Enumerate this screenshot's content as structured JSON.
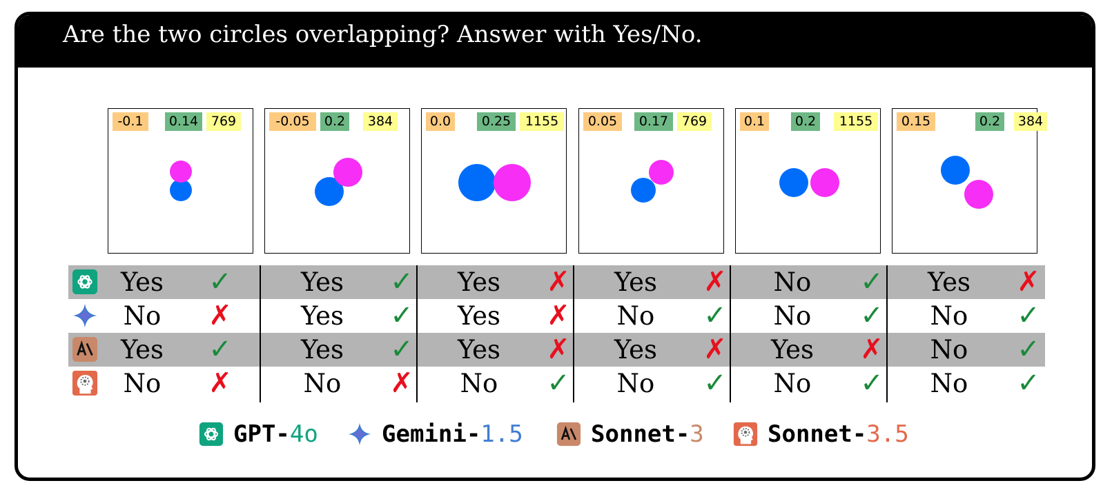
{
  "header": {
    "question": "Are the two circles overlapping? Answer with Yes/No."
  },
  "colors": {
    "blue_circle": "#006dfa",
    "magenta_circle": "#f62ef6",
    "label_orange": "#fdcb80",
    "label_green": "#6db884",
    "label_yellow": "#fdfd90",
    "check": "#1a8a3a",
    "cross": "#e8101e",
    "gpt": "#10a37f",
    "gemini": "#3f7dd1",
    "sonnet3": "#c9886a",
    "sonnet35": "#e2694a"
  },
  "panels": [
    {
      "labels": [
        "-0.1",
        "0.14",
        "769"
      ]
    },
    {
      "labels": [
        "-0.05",
        "0.2",
        "384"
      ]
    },
    {
      "labels": [
        "0.0",
        "0.25",
        "1155"
      ]
    },
    {
      "labels": [
        "0.05",
        "0.17",
        "769"
      ]
    },
    {
      "labels": [
        "0.1",
        "0.2",
        "1155"
      ]
    },
    {
      "labels": [
        "0.15",
        "0.2",
        "384"
      ]
    }
  ],
  "symbols": {
    "check": "✓",
    "cross": "✗"
  },
  "results": [
    {
      "model_icon": "gpt-icon",
      "cells": [
        {
          "answer": "Yes",
          "correct": true
        },
        {
          "answer": "Yes",
          "correct": true
        },
        {
          "answer": "Yes",
          "correct": false
        },
        {
          "answer": "Yes",
          "correct": false
        },
        {
          "answer": "No",
          "correct": true
        },
        {
          "answer": "Yes",
          "correct": false
        }
      ]
    },
    {
      "model_icon": "gemini-icon",
      "cells": [
        {
          "answer": "No",
          "correct": false
        },
        {
          "answer": "Yes",
          "correct": true
        },
        {
          "answer": "Yes",
          "correct": false
        },
        {
          "answer": "No",
          "correct": true
        },
        {
          "answer": "No",
          "correct": true
        },
        {
          "answer": "No",
          "correct": true
        }
      ]
    },
    {
      "model_icon": "sonnet3-icon",
      "cells": [
        {
          "answer": "Yes",
          "correct": true
        },
        {
          "answer": "Yes",
          "correct": true
        },
        {
          "answer": "Yes",
          "correct": false
        },
        {
          "answer": "Yes",
          "correct": false
        },
        {
          "answer": "Yes",
          "correct": false
        },
        {
          "answer": "No",
          "correct": true
        }
      ]
    },
    {
      "model_icon": "sonnet35-icon",
      "cells": [
        {
          "answer": "No",
          "correct": false
        },
        {
          "answer": "No",
          "correct": false
        },
        {
          "answer": "No",
          "correct": true
        },
        {
          "answer": "No",
          "correct": true
        },
        {
          "answer": "No",
          "correct": true
        },
        {
          "answer": "No",
          "correct": true
        }
      ]
    }
  ],
  "legend": [
    {
      "icon": "gpt-icon",
      "prefix": "GPT-",
      "suffix": "4o"
    },
    {
      "icon": "gemini-icon",
      "prefix": "Gemini-",
      "suffix": "1.5"
    },
    {
      "icon": "sonnet3-icon",
      "prefix": "Sonnet-",
      "suffix": "3"
    },
    {
      "icon": "sonnet35-icon",
      "prefix": "Sonnet-",
      "suffix": "3.5"
    }
  ]
}
